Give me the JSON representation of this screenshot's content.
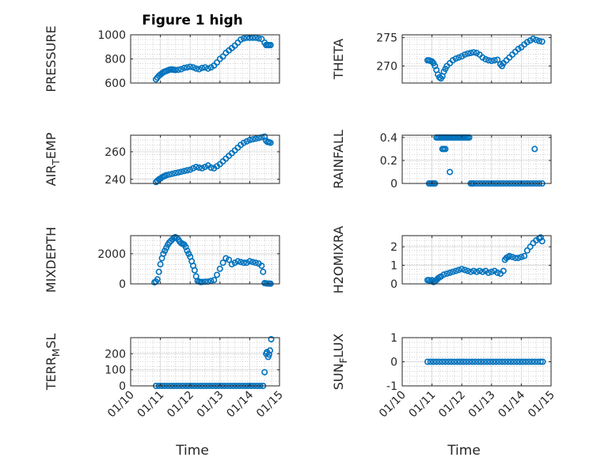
{
  "colors": {
    "marker": "#0072BD",
    "axis": "#262626",
    "grid": "#d9d9d9",
    "minor_grid": "#b5b5b5"
  },
  "figure": {
    "title": "Figure 1 high"
  },
  "x_tick_labels": [
    "01/10",
    "01/11",
    "01/12",
    "01/13",
    "01/14",
    "01/15"
  ],
  "chart_data": [
    {
      "type": "scatter",
      "ylabel": "PRESSURE",
      "xlim": [
        0,
        5
      ],
      "ylim": [
        600,
        1000
      ],
      "yticks": [
        600,
        800,
        1000
      ],
      "ytick_labels": [
        "600",
        "800",
        "1000"
      ],
      "x": [
        0.85,
        0.9,
        0.95,
        1.0,
        1.05,
        1.1,
        1.15,
        1.2,
        1.25,
        1.3,
        1.35,
        1.4,
        1.45,
        1.5,
        1.6,
        1.7,
        1.8,
        1.9,
        2.0,
        2.1,
        2.2,
        2.3,
        2.4,
        2.5,
        2.6,
        2.7,
        2.8,
        2.9,
        3.0,
        3.1,
        3.2,
        3.3,
        3.4,
        3.5,
        3.6,
        3.7,
        3.8,
        3.9,
        4.0,
        4.1,
        4.2,
        4.3,
        4.4,
        4.5,
        4.55,
        4.6,
        4.65,
        4.7
      ],
      "y": [
        630,
        645,
        660,
        670,
        680,
        690,
        695,
        700,
        705,
        710,
        712,
        712,
        710,
        708,
        710,
        715,
        725,
        730,
        735,
        730,
        720,
        715,
        725,
        730,
        720,
        730,
        745,
        770,
        800,
        820,
        850,
        870,
        890,
        910,
        935,
        960,
        970,
        975,
        975,
        975,
        975,
        970,
        965,
        935,
        915,
        915,
        915,
        915
      ]
    },
    {
      "type": "scatter",
      "ylabel": "THETA",
      "xlim": [
        0,
        5
      ],
      "ylim": [
        267,
        275.5
      ],
      "yticks": [
        270,
        275
      ],
      "ytick_labels": [
        "270",
        "275"
      ],
      "x": [
        0.85,
        0.9,
        0.95,
        1.0,
        1.05,
        1.1,
        1.15,
        1.2,
        1.25,
        1.3,
        1.35,
        1.4,
        1.45,
        1.5,
        1.6,
        1.7,
        1.8,
        1.9,
        2.0,
        2.1,
        2.2,
        2.3,
        2.4,
        2.5,
        2.6,
        2.7,
        2.8,
        2.9,
        3.0,
        3.1,
        3.2,
        3.3,
        3.35,
        3.4,
        3.5,
        3.6,
        3.7,
        3.8,
        3.9,
        4.0,
        4.1,
        4.2,
        4.3,
        4.4,
        4.5,
        4.6,
        4.7
      ],
      "y": [
        271,
        271,
        270.9,
        270.8,
        270.5,
        270,
        269.3,
        268.5,
        268,
        267.8,
        268.2,
        269,
        269.5,
        270,
        270.5,
        271,
        271.3,
        271.5,
        271.7,
        272,
        272.2,
        272.3,
        272.4,
        272.3,
        272,
        271.5,
        271.2,
        271,
        270.9,
        271,
        271.1,
        270.3,
        270,
        270.5,
        271,
        271.5,
        272,
        272.5,
        273,
        273.3,
        273.8,
        274.2,
        274.5,
        274.8,
        274.6,
        274.4,
        274.3
      ]
    },
    {
      "type": "scatter",
      "ylabel": "AIR_TEMP",
      "ylabel_main": "AIR",
      "ylabel_sub": "T",
      "ylabel_rest": "EMP",
      "xlim": [
        0,
        5
      ],
      "ylim": [
        237,
        272
      ],
      "yticks": [
        240,
        260
      ],
      "ytick_labels": [
        "240",
        "260"
      ],
      "x": [
        0.85,
        0.9,
        0.95,
        1.0,
        1.05,
        1.1,
        1.15,
        1.2,
        1.3,
        1.4,
        1.5,
        1.6,
        1.7,
        1.8,
        1.9,
        2.0,
        2.1,
        2.2,
        2.3,
        2.4,
        2.5,
        2.6,
        2.7,
        2.8,
        2.9,
        3.0,
        3.1,
        3.2,
        3.3,
        3.4,
        3.5,
        3.6,
        3.7,
        3.8,
        3.9,
        4.0,
        4.1,
        4.2,
        4.3,
        4.4,
        4.5,
        4.55,
        4.6,
        4.65,
        4.7
      ],
      "y": [
        238,
        239,
        240,
        240.5,
        241.5,
        242,
        242.5,
        243,
        243.5,
        244,
        244.5,
        245,
        245.5,
        246,
        246.5,
        247,
        248,
        249,
        248.5,
        248,
        249,
        250,
        248.5,
        248,
        249.5,
        251,
        253,
        255,
        257,
        259,
        261,
        263,
        265,
        266.5,
        267.5,
        268.5,
        269,
        269.5,
        270,
        270.5,
        271,
        268,
        267,
        267,
        266.5
      ]
    },
    {
      "type": "scatter",
      "ylabel": "RAINFALL",
      "xlim": [
        0,
        5
      ],
      "ylim": [
        0,
        0.42
      ],
      "yticks": [
        0,
        0.2,
        0.4
      ],
      "ytick_labels": [
        "0",
        "0.2",
        "0.4"
      ],
      "x": [
        0.9,
        0.95,
        1.0,
        1.05,
        1.1,
        1.15,
        1.2,
        1.25,
        1.3,
        1.35,
        1.4,
        1.45,
        1.5,
        1.55,
        1.6,
        1.65,
        1.7,
        1.75,
        1.8,
        1.85,
        1.9,
        1.95,
        2.0,
        2.05,
        2.1,
        2.15,
        2.2,
        2.25,
        2.3,
        2.35,
        2.4,
        2.5,
        2.6,
        2.7,
        2.8,
        2.9,
        3.0,
        3.1,
        3.2,
        3.3,
        3.4,
        3.5,
        3.6,
        3.7,
        3.8,
        3.9,
        4.0,
        4.1,
        4.2,
        4.3,
        4.4,
        4.5,
        4.6,
        4.7,
        1.35,
        1.4,
        1.45,
        1.6,
        4.45
      ],
      "y": [
        0,
        0,
        0,
        0,
        0,
        0.4,
        0.4,
        0.4,
        0.4,
        0.4,
        0.4,
        0.4,
        0.4,
        0.4,
        0.4,
        0.4,
        0.4,
        0.4,
        0.4,
        0.4,
        0.4,
        0.4,
        0.4,
        0.4,
        0.4,
        0.4,
        0.4,
        0.4,
        0,
        0,
        0,
        0,
        0,
        0,
        0,
        0,
        0,
        0,
        0,
        0,
        0,
        0,
        0,
        0,
        0,
        0,
        0,
        0,
        0,
        0,
        0,
        0,
        0,
        0,
        0.3,
        0.3,
        0.3,
        0.1,
        0.3
      ]
    },
    {
      "type": "scatter",
      "ylabel": "MIXDEPTH",
      "xlim": [
        0,
        5
      ],
      "ylim": [
        0,
        3200
      ],
      "yticks": [
        0,
        2000
      ],
      "ytick_labels": [
        "0",
        "2000"
      ],
      "x": [
        0.8,
        0.85,
        0.9,
        0.95,
        1.0,
        1.05,
        1.1,
        1.15,
        1.2,
        1.25,
        1.3,
        1.35,
        1.4,
        1.45,
        1.5,
        1.55,
        1.6,
        1.65,
        1.7,
        1.75,
        1.8,
        1.85,
        1.9,
        1.95,
        2.0,
        2.05,
        2.1,
        2.15,
        2.2,
        2.25,
        2.3,
        2.35,
        2.4,
        2.5,
        2.6,
        2.7,
        2.8,
        2.9,
        3.0,
        3.1,
        3.2,
        3.3,
        3.4,
        3.5,
        3.6,
        3.7,
        3.8,
        3.9,
        4.0,
        4.1,
        4.2,
        4.3,
        4.4,
        4.45,
        4.5,
        4.55,
        4.6,
        4.65,
        4.7
      ],
      "y": [
        100,
        150,
        300,
        800,
        1300,
        1700,
        2000,
        2200,
        2400,
        2600,
        2750,
        2850,
        2950,
        3050,
        3100,
        3050,
        2950,
        2800,
        2700,
        2650,
        2600,
        2450,
        2200,
        2000,
        1800,
        1500,
        1200,
        900,
        500,
        200,
        150,
        120,
        130,
        140,
        150,
        200,
        250,
        600,
        1000,
        1400,
        1700,
        1600,
        1300,
        1400,
        1500,
        1450,
        1400,
        1400,
        1500,
        1450,
        1400,
        1350,
        1200,
        800,
        50,
        30,
        20,
        20,
        10
      ]
    },
    {
      "type": "scatter",
      "ylabel": "H2OMIXRA",
      "xlim": [
        0,
        5
      ],
      "ylim": [
        0,
        2.6
      ],
      "yticks": [
        0,
        1,
        2
      ],
      "ytick_labels": [
        "0",
        "1",
        "2"
      ],
      "x": [
        0.85,
        0.9,
        0.95,
        1.0,
        1.05,
        1.1,
        1.15,
        1.2,
        1.25,
        1.3,
        1.4,
        1.5,
        1.6,
        1.7,
        1.8,
        1.9,
        2.0,
        2.1,
        2.2,
        2.3,
        2.4,
        2.5,
        2.6,
        2.7,
        2.8,
        2.9,
        3.0,
        3.1,
        3.2,
        3.3,
        3.4,
        3.45,
        3.5,
        3.55,
        3.6,
        3.7,
        3.8,
        3.9,
        4.0,
        4.1,
        4.2,
        4.3,
        4.4,
        4.5,
        4.6,
        4.65,
        4.7
      ],
      "y": [
        0.2,
        0.2,
        0.15,
        0.2,
        0.1,
        0.15,
        0.2,
        0.3,
        0.35,
        0.4,
        0.5,
        0.55,
        0.6,
        0.65,
        0.7,
        0.75,
        0.8,
        0.75,
        0.7,
        0.65,
        0.7,
        0.65,
        0.7,
        0.65,
        0.7,
        0.6,
        0.65,
        0.7,
        0.6,
        0.55,
        0.7,
        1.3,
        1.4,
        1.45,
        1.5,
        1.45,
        1.4,
        1.4,
        1.45,
        1.5,
        1.8,
        2.0,
        2.2,
        2.35,
        2.45,
        2.5,
        2.3
      ]
    },
    {
      "type": "scatter",
      "ylabel": "TERR_MSL",
      "ylabel_main": "TERR",
      "ylabel_sub": "M",
      "ylabel_rest": "SL",
      "xlim": [
        0,
        5
      ],
      "ylim": [
        0,
        300
      ],
      "yticks": [
        0,
        100,
        200
      ],
      "ytick_labels": [
        "0",
        "100",
        "200"
      ],
      "x": [
        0.85,
        0.95,
        1.05,
        1.15,
        1.25,
        1.35,
        1.45,
        1.55,
        1.65,
        1.75,
        1.85,
        1.95,
        2.05,
        2.15,
        2.25,
        2.35,
        2.45,
        2.55,
        2.65,
        2.75,
        2.85,
        2.95,
        3.05,
        3.15,
        3.25,
        3.35,
        3.45,
        3.55,
        3.65,
        3.75,
        3.85,
        3.95,
        4.05,
        4.15,
        4.25,
        4.35,
        4.45,
        4.5,
        4.55,
        4.58,
        4.62,
        4.65,
        4.68,
        4.72
      ],
      "y": [
        0,
        0,
        0,
        0,
        0,
        0,
        0,
        0,
        0,
        0,
        0,
        0,
        0,
        0,
        0,
        0,
        0,
        0,
        0,
        0,
        0,
        0,
        0,
        0,
        0,
        0,
        0,
        0,
        0,
        0,
        0,
        0,
        0,
        0,
        0,
        0,
        0,
        85,
        200,
        210,
        180,
        195,
        220,
        290
      ]
    },
    {
      "type": "scatter",
      "ylabel": "SUN_FLUX",
      "ylabel_main": "SUN",
      "ylabel_sub": "F",
      "ylabel_rest": "LUX",
      "xlim": [
        0,
        5
      ],
      "ylim": [
        -1,
        1
      ],
      "yticks": [
        -1,
        0,
        1
      ],
      "ytick_labels": [
        "-1",
        "0",
        "1"
      ],
      "x": [
        0.85,
        0.95,
        1.05,
        1.15,
        1.25,
        1.35,
        1.45,
        1.55,
        1.65,
        1.75,
        1.85,
        1.95,
        2.05,
        2.15,
        2.25,
        2.35,
        2.45,
        2.55,
        2.65,
        2.75,
        2.85,
        2.95,
        3.05,
        3.15,
        3.25,
        3.35,
        3.45,
        3.55,
        3.65,
        3.75,
        3.85,
        3.95,
        4.05,
        4.15,
        4.25,
        4.35,
        4.45,
        4.55,
        4.65,
        4.72
      ],
      "y": [
        0,
        0,
        0,
        0,
        0,
        0,
        0,
        0,
        0,
        0,
        0,
        0,
        0,
        0,
        0,
        0,
        0,
        0,
        0,
        0,
        0,
        0,
        0,
        0,
        0,
        0,
        0,
        0,
        0,
        0,
        0,
        0,
        0,
        0,
        0,
        0,
        0,
        0,
        0,
        0
      ]
    }
  ],
  "xlabels": [
    "Time",
    "Time"
  ]
}
